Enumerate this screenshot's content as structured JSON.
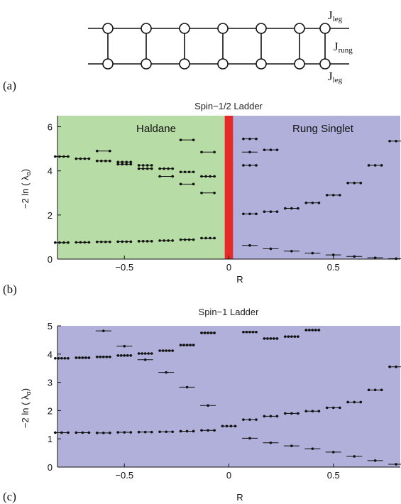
{
  "panel_labels": [
    "(a)",
    "(b)",
    "(c)"
  ],
  "diagram": {
    "j_leg_top": "J",
    "j_leg_top_sub": "leg",
    "j_rung": "J",
    "j_rung_sub": "rung",
    "j_leg_bottom": "J",
    "j_leg_bottom_sub": "leg"
  },
  "colors": {
    "haldane": "#b8dca6",
    "rung_singlet": "#b1b0db",
    "transition": "#e62a2a",
    "marks": "#111111"
  },
  "chart_data": [
    {
      "type": "scatter",
      "title": "Spin−1/2 Ladder",
      "xlabel": "R",
      "ylabel": "−2 ln ( λ",
      "ylabel_sub": "α",
      "ylabel_close": ")",
      "xlim": [
        -0.82,
        0.82
      ],
      "ylim": [
        0,
        6.5
      ],
      "xticks": [
        -0.5,
        0,
        0.5
      ],
      "xtick_labels": [
        "−0.5",
        "0",
        "0.5"
      ],
      "yticks": [
        0,
        2,
        4,
        6
      ],
      "ytick_labels": [
        "0",
        "2",
        "4",
        "6"
      ],
      "regions": [
        {
          "label": "Haldane",
          "x": [
            -0.82,
            -0.02
          ],
          "color": "#b8dca6"
        },
        {
          "label": "Rung Singlet",
          "x": [
            0.02,
            0.82
          ],
          "color": "#b1b0db"
        }
      ],
      "transition_band": [
        -0.02,
        0.02
      ],
      "levels": [
        {
          "R": -0.8,
          "y": 0.75,
          "deg": 4
        },
        {
          "R": -0.8,
          "y": 4.65,
          "deg": 4
        },
        {
          "R": -0.7,
          "y": 0.76,
          "deg": 4
        },
        {
          "R": -0.7,
          "y": 4.55,
          "deg": 4
        },
        {
          "R": -0.6,
          "y": 0.78,
          "deg": 4
        },
        {
          "R": -0.6,
          "y": 4.45,
          "deg": 4
        },
        {
          "R": -0.6,
          "y": 4.9,
          "deg": 2
        },
        {
          "R": -0.5,
          "y": 0.79,
          "deg": 4
        },
        {
          "R": -0.5,
          "y": 4.3,
          "deg": 4
        },
        {
          "R": -0.5,
          "y": 4.4,
          "deg": 4
        },
        {
          "R": -0.4,
          "y": 0.81,
          "deg": 4
        },
        {
          "R": -0.4,
          "y": 4.1,
          "deg": 4
        },
        {
          "R": -0.4,
          "y": 4.25,
          "deg": 4
        },
        {
          "R": -0.3,
          "y": 0.84,
          "deg": 4
        },
        {
          "R": -0.3,
          "y": 3.75,
          "deg": 2
        },
        {
          "R": -0.3,
          "y": 4.1,
          "deg": 4
        },
        {
          "R": -0.2,
          "y": 0.88,
          "deg": 4
        },
        {
          "R": -0.2,
          "y": 3.4,
          "deg": 2
        },
        {
          "R": -0.2,
          "y": 3.95,
          "deg": 4
        },
        {
          "R": -0.2,
          "y": 5.4,
          "deg": 2
        },
        {
          "R": -0.1,
          "y": 0.95,
          "deg": 4
        },
        {
          "R": -0.1,
          "y": 3.0,
          "deg": 2
        },
        {
          "R": -0.1,
          "y": 3.75,
          "deg": 4
        },
        {
          "R": -0.1,
          "y": 4.85,
          "deg": 2
        },
        {
          "R": 0.1,
          "y": 0.62,
          "deg": 1
        },
        {
          "R": 0.1,
          "y": 2.05,
          "deg": 3
        },
        {
          "R": 0.1,
          "y": 4.25,
          "deg": 3
        },
        {
          "R": 0.1,
          "y": 4.85,
          "deg": 1
        },
        {
          "R": 0.1,
          "y": 5.45,
          "deg": 3
        },
        {
          "R": 0.2,
          "y": 0.47,
          "deg": 1
        },
        {
          "R": 0.2,
          "y": 2.15,
          "deg": 3
        },
        {
          "R": 0.2,
          "y": 4.95,
          "deg": 3
        },
        {
          "R": 0.3,
          "y": 0.36,
          "deg": 1
        },
        {
          "R": 0.3,
          "y": 2.3,
          "deg": 3
        },
        {
          "R": 0.4,
          "y": 0.27,
          "deg": 1
        },
        {
          "R": 0.4,
          "y": 2.55,
          "deg": 3
        },
        {
          "R": 0.5,
          "y": 0.19,
          "deg": 1
        },
        {
          "R": 0.5,
          "y": 2.9,
          "deg": 3
        },
        {
          "R": 0.6,
          "y": 0.12,
          "deg": 1
        },
        {
          "R": 0.6,
          "y": 3.45,
          "deg": 3
        },
        {
          "R": 0.7,
          "y": 0.06,
          "deg": 1
        },
        {
          "R": 0.7,
          "y": 4.25,
          "deg": 3
        },
        {
          "R": 0.8,
          "y": 0.02,
          "deg": 1
        },
        {
          "R": 0.8,
          "y": 5.35,
          "deg": 3
        }
      ]
    },
    {
      "type": "scatter",
      "title": "Spin−1 Ladder",
      "xlabel": "R",
      "ylabel": "−2 ln ( λ",
      "ylabel_sub": "α",
      "ylabel_close": ")",
      "xlim": [
        -0.82,
        0.82
      ],
      "ylim": [
        0,
        5
      ],
      "xticks": [
        -0.5,
        0,
        0.5
      ],
      "xtick_labels": [
        "−0.5",
        "0",
        "0.5"
      ],
      "yticks": [
        0,
        1,
        2,
        3,
        4,
        5
      ],
      "ytick_labels": [
        "0",
        "1",
        "2",
        "3",
        "4",
        "5"
      ],
      "regions": [
        {
          "label": "",
          "x": [
            -0.82,
            0.82
          ],
          "color": "#b1b0db"
        }
      ],
      "levels": [
        {
          "R": -0.8,
          "y": 1.22,
          "deg": 3
        },
        {
          "R": -0.8,
          "y": 3.85,
          "deg": 5
        },
        {
          "R": -0.7,
          "y": 1.22,
          "deg": 3
        },
        {
          "R": -0.7,
          "y": 3.87,
          "deg": 5
        },
        {
          "R": -0.6,
          "y": 1.21,
          "deg": 3
        },
        {
          "R": -0.6,
          "y": 3.9,
          "deg": 5
        },
        {
          "R": -0.6,
          "y": 4.82,
          "deg": 1
        },
        {
          "R": -0.5,
          "y": 1.23,
          "deg": 3
        },
        {
          "R": -0.5,
          "y": 3.95,
          "deg": 5
        },
        {
          "R": -0.5,
          "y": 4.28,
          "deg": 1
        },
        {
          "R": -0.4,
          "y": 1.24,
          "deg": 3
        },
        {
          "R": -0.4,
          "y": 3.8,
          "deg": 1
        },
        {
          "R": -0.4,
          "y": 4.02,
          "deg": 5
        },
        {
          "R": -0.3,
          "y": 1.25,
          "deg": 3
        },
        {
          "R": -0.3,
          "y": 3.35,
          "deg": 1
        },
        {
          "R": -0.3,
          "y": 4.12,
          "deg": 5
        },
        {
          "R": -0.2,
          "y": 1.27,
          "deg": 3
        },
        {
          "R": -0.2,
          "y": 2.83,
          "deg": 1
        },
        {
          "R": -0.2,
          "y": 4.32,
          "deg": 5
        },
        {
          "R": -0.1,
          "y": 1.3,
          "deg": 3
        },
        {
          "R": -0.1,
          "y": 2.18,
          "deg": 1
        },
        {
          "R": -0.1,
          "y": 4.75,
          "deg": 5
        },
        {
          "R": 0.0,
          "y": 1.45,
          "deg": 4
        },
        {
          "R": 0.1,
          "y": 1.02,
          "deg": 1
        },
        {
          "R": 0.1,
          "y": 1.68,
          "deg": 3
        },
        {
          "R": 0.1,
          "y": 4.78,
          "deg": 5
        },
        {
          "R": 0.2,
          "y": 0.86,
          "deg": 1
        },
        {
          "R": 0.2,
          "y": 1.8,
          "deg": 3
        },
        {
          "R": 0.2,
          "y": 4.55,
          "deg": 5
        },
        {
          "R": 0.3,
          "y": 0.75,
          "deg": 1
        },
        {
          "R": 0.3,
          "y": 1.9,
          "deg": 3
        },
        {
          "R": 0.3,
          "y": 4.62,
          "deg": 5
        },
        {
          "R": 0.4,
          "y": 0.65,
          "deg": 1
        },
        {
          "R": 0.4,
          "y": 1.98,
          "deg": 3
        },
        {
          "R": 0.4,
          "y": 4.85,
          "deg": 5
        },
        {
          "R": 0.5,
          "y": 0.53,
          "deg": 1
        },
        {
          "R": 0.5,
          "y": 2.1,
          "deg": 3
        },
        {
          "R": 0.6,
          "y": 0.38,
          "deg": 1
        },
        {
          "R": 0.6,
          "y": 2.3,
          "deg": 3
        },
        {
          "R": 0.7,
          "y": 0.23,
          "deg": 1
        },
        {
          "R": 0.7,
          "y": 2.73,
          "deg": 3
        },
        {
          "R": 0.8,
          "y": 0.1,
          "deg": 1
        },
        {
          "R": 0.8,
          "y": 3.55,
          "deg": 3
        }
      ]
    }
  ]
}
